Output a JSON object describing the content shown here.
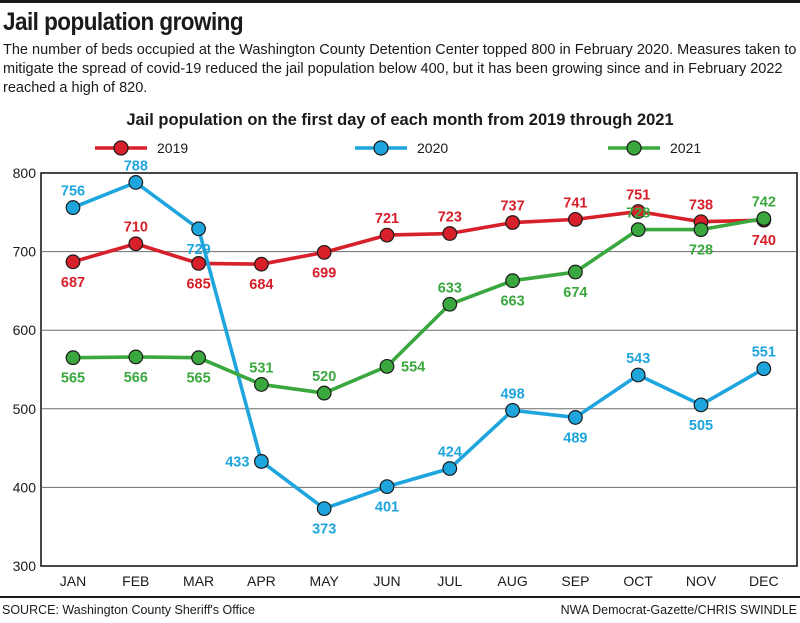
{
  "header": {
    "title": "Jail population growing",
    "subtitle": "The number of beds occupied at the Washington County Detention Center topped 800 in February 2020. Measures taken to mitigate the spread of covid-19 reduced the jail population below 400, but it has been growing since and in February 2022 reached a high of 820."
  },
  "footer": {
    "source": "SOURCE: Washington County Sheriff's Office",
    "credit": "NWA Democrat-Gazette/CHRIS SWINDLE"
  },
  "chart_data": {
    "type": "line",
    "title": "Jail population on the first day of each month from 2019 through 2021",
    "xlabel": "",
    "ylabel": "",
    "categories": [
      "JAN",
      "FEB",
      "MAR",
      "APR",
      "MAY",
      "JUN",
      "JUL",
      "AUG",
      "SEP",
      "OCT",
      "NOV",
      "DEC"
    ],
    "ylim": [
      300,
      800
    ],
    "yticks": [
      300,
      400,
      500,
      600,
      700,
      800
    ],
    "grid": "horizontal",
    "legend_position": "top",
    "series": [
      {
        "name": "2019",
        "color": "#d7202a",
        "values": [
          687,
          710,
          685,
          684,
          699,
          721,
          723,
          737,
          741,
          751,
          738,
          740
        ]
      },
      {
        "name": "2020",
        "color": "#1fa5dd",
        "values": [
          756,
          788,
          729,
          433,
          373,
          401,
          424,
          498,
          489,
          543,
          505,
          551
        ]
      },
      {
        "name": "2021",
        "color": "#3aa83e",
        "values": [
          565,
          566,
          565,
          531,
          520,
          554,
          633,
          663,
          674,
          728,
          728,
          742
        ]
      }
    ]
  }
}
